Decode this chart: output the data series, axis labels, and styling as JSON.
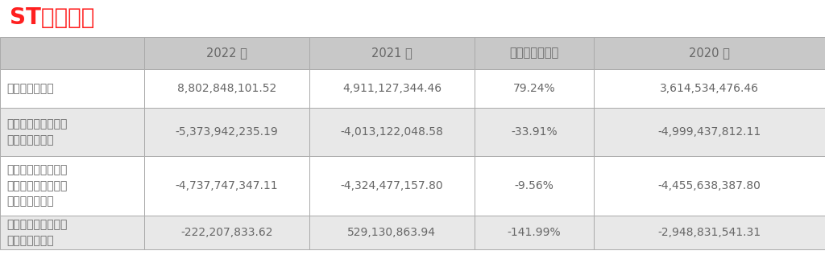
{
  "title": "ST泰禾年报",
  "title_color": "#FF2020",
  "background_color": "#FFFFFF",
  "col_headers": [
    "",
    "2022 年",
    "2021 年",
    "本年比上年增减",
    "2020 年"
  ],
  "rows": [
    {
      "label": "营业收入（元）",
      "vals": [
        "8,802,848,101.52",
        "4,911,127,344.46",
        "79.24%",
        "3,614,534,476.46"
      ]
    },
    {
      "label": "归属于上市公司股东\n的净利润（元）",
      "vals": [
        "-5,373,942,235.19",
        "-4,013,122,048.58",
        "-33.91%",
        "-4,999,437,812.11"
      ]
    },
    {
      "label": "归属于上市公司股东\n的扣除非经常性损益\n的净利润（元）",
      "vals": [
        "-4,737,747,347.11",
        "-4,324,477,157.80",
        "-9.56%",
        "-4,455,638,387.80"
      ]
    },
    {
      "label": "经营活动产生的现金\n流量净额（元）",
      "vals": [
        "-222,207,833.62",
        "529,130,863.94",
        "-141.99%",
        "-2,948,831,541.31"
      ]
    }
  ],
  "header_bg": "#C8C8C8",
  "row_bgs": [
    "#FFFFFF",
    "#E8E8E8",
    "#FFFFFF",
    "#E8E8E8"
  ],
  "border_color": "#AAAAAA",
  "text_color": "#666666",
  "title_fontsize": 20,
  "header_fontsize": 10.5,
  "cell_fontsize": 10,
  "label_fontsize": 10
}
